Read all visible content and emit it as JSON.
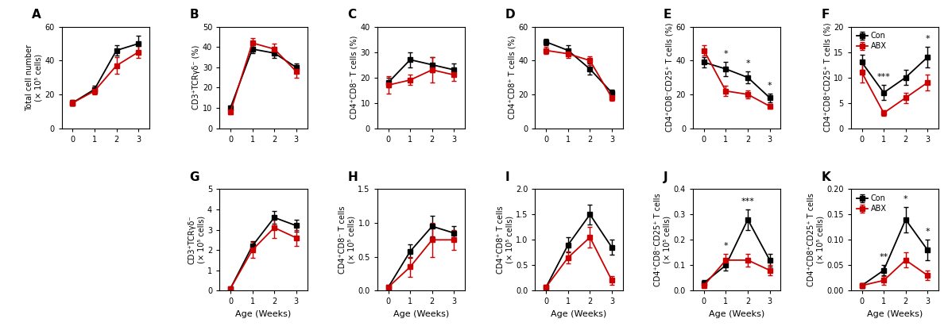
{
  "chart_data": [
    {
      "type": "line",
      "title": "A",
      "ylabel": "Total cell number\n(× 10⁵ cells)",
      "x": [
        0,
        1,
        2,
        3
      ],
      "xlim": [
        -0.5,
        3.5
      ],
      "xticks": [
        0,
        1,
        2,
        3
      ],
      "ylim": [
        0,
        60
      ],
      "yticks": [
        0,
        20,
        40,
        60
      ],
      "series": [
        {
          "name": "Con",
          "color": "#000000",
          "marker": "square",
          "values": [
            15,
            23,
            46,
            50
          ],
          "errors": [
            1.5,
            2.0,
            3.0,
            4.5
          ]
        },
        {
          "name": "ABX",
          "color": "#cc0000",
          "marker": "square",
          "values": [
            15,
            22,
            37,
            45
          ],
          "errors": [
            1.5,
            2.0,
            5.0,
            3.5
          ]
        }
      ]
    },
    {
      "type": "line",
      "title": "B",
      "ylabel": "CD3⁺TCRγδ⁻ (%)",
      "x": [
        0,
        1,
        2,
        3
      ],
      "xlim": [
        -0.5,
        3.5
      ],
      "xticks": [
        0,
        1,
        2,
        3
      ],
      "ylim": [
        0,
        50
      ],
      "yticks": [
        0,
        10,
        20,
        30,
        40,
        50
      ],
      "series": [
        {
          "name": "Con",
          "color": "#000000",
          "marker": "square",
          "values": [
            10,
            39,
            37,
            30
          ],
          "errors": [
            1.0,
            2.0,
            2.5,
            2.0
          ]
        },
        {
          "name": "ABX",
          "color": "#cc0000",
          "marker": "square",
          "values": [
            8,
            42,
            39,
            28
          ],
          "errors": [
            1.0,
            2.5,
            2.5,
            3.0
          ]
        }
      ]
    },
    {
      "type": "line",
      "title": "C",
      "ylabel": "CD4⁺CD8⁻ T cells (%)",
      "x": [
        0,
        1,
        2,
        3
      ],
      "xlim": [
        -0.5,
        3.5
      ],
      "xticks": [
        0,
        1,
        2,
        3
      ],
      "ylim": [
        0,
        40
      ],
      "yticks": [
        0,
        10,
        20,
        30,
        40
      ],
      "series": [
        {
          "name": "Con",
          "color": "#000000",
          "marker": "square",
          "values": [
            18,
            27,
            25,
            23
          ],
          "errors": [
            2.0,
            3.0,
            3.0,
            2.5
          ]
        },
        {
          "name": "ABX",
          "color": "#cc0000",
          "marker": "square",
          "values": [
            17,
            19,
            23,
            21
          ],
          "errors": [
            3.5,
            2.0,
            5.0,
            2.5
          ]
        }
      ]
    },
    {
      "type": "line",
      "title": "D",
      "ylabel": "CD4⁺CD8⁺ T cells (%)",
      "x": [
        0,
        1,
        2,
        3
      ],
      "xlim": [
        -0.5,
        3.5
      ],
      "xticks": [
        0,
        1,
        2,
        3
      ],
      "ylim": [
        0,
        60
      ],
      "yticks": [
        0,
        20,
        40,
        60
      ],
      "series": [
        {
          "name": "Con",
          "color": "#000000",
          "marker": "square",
          "values": [
            51,
            46,
            35,
            21
          ],
          "errors": [
            2.0,
            3.0,
            3.5,
            2.0
          ]
        },
        {
          "name": "ABX",
          "color": "#cc0000",
          "marker": "square",
          "values": [
            46,
            44,
            40,
            18
          ],
          "errors": [
            2.0,
            2.5,
            2.5,
            2.0
          ]
        }
      ]
    },
    {
      "type": "line",
      "title": "E",
      "ylabel": "CD4⁺CD8⁻CD25⁺ T cells (%)",
      "x": [
        0,
        1,
        2,
        3
      ],
      "xlim": [
        -0.5,
        3.5
      ],
      "xticks": [
        0,
        1,
        2,
        3
      ],
      "ylim": [
        0,
        60
      ],
      "yticks": [
        0,
        20,
        40,
        60
      ],
      "series": [
        {
          "name": "Con",
          "color": "#000000",
          "marker": "square",
          "values": [
            39,
            35,
            30,
            18
          ],
          "errors": [
            3.0,
            4.0,
            3.5,
            2.5
          ]
        },
        {
          "name": "ABX",
          "color": "#cc0000",
          "marker": "square",
          "values": [
            46,
            22,
            20,
            13
          ],
          "errors": [
            3.0,
            3.0,
            2.5,
            1.5
          ]
        }
      ],
      "annotations": [
        {
          "x": 1,
          "text": "*"
        },
        {
          "x": 2,
          "text": "*"
        },
        {
          "x": 3,
          "text": "*"
        }
      ]
    },
    {
      "type": "line",
      "title": "F",
      "ylabel": "CD4⁺CD8⁺CD25⁺ T cells (%)",
      "x": [
        0,
        1,
        2,
        3
      ],
      "xlim": [
        -0.5,
        3.5
      ],
      "xticks": [
        0,
        1,
        2,
        3
      ],
      "ylim": [
        0,
        20
      ],
      "yticks": [
        0,
        5,
        10,
        15,
        20
      ],
      "series": [
        {
          "name": "Con",
          "color": "#000000",
          "marker": "square",
          "values": [
            13,
            7,
            10,
            14
          ],
          "errors": [
            1.5,
            1.5,
            1.5,
            2.0
          ]
        },
        {
          "name": "ABX",
          "color": "#cc0000",
          "marker": "square",
          "values": [
            11,
            3,
            6,
            9
          ],
          "errors": [
            2.0,
            0.5,
            1.0,
            1.5
          ]
        }
      ],
      "annotations": [
        {
          "x": 1,
          "text": "***"
        },
        {
          "x": 3,
          "text": "*"
        }
      ],
      "legend": "upper left"
    },
    {
      "type": "line",
      "title": "G",
      "ylabel": "CD3⁺TCRγδ⁻\n(× 10⁵ cells)",
      "xlabel": "Age (Weeks)",
      "x": [
        0,
        1,
        2,
        3
      ],
      "xlim": [
        -0.5,
        3.5
      ],
      "xticks": [
        0,
        1,
        2,
        3
      ],
      "ylim": [
        0,
        5
      ],
      "yticks": [
        0,
        1,
        2,
        3,
        4,
        5
      ],
      "series": [
        {
          "name": "Con",
          "color": "#000000",
          "marker": "square",
          "values": [
            0.1,
            2.2,
            3.6,
            3.2
          ],
          "errors": [
            0.05,
            0.25,
            0.3,
            0.3
          ]
        },
        {
          "name": "ABX",
          "color": "#cc0000",
          "marker": "square",
          "values": [
            0.1,
            2.0,
            3.1,
            2.6
          ],
          "errors": [
            0.05,
            0.4,
            0.5,
            0.4
          ]
        }
      ]
    },
    {
      "type": "line",
      "title": "H",
      "ylabel": "CD4⁺CD8⁻ T cells\n(× 10⁵ cells)",
      "xlabel": "Age (Weeks)",
      "x": [
        0,
        1,
        2,
        3
      ],
      "xlim": [
        -0.5,
        3.5
      ],
      "xticks": [
        0,
        1,
        2,
        3
      ],
      "ylim": [
        0.0,
        1.5
      ],
      "yticks": [
        {
          "value": 0.0,
          "label": "0.0"
        },
        {
          "value": 0.5,
          "label": "0.5"
        },
        {
          "value": 1.0,
          "label": "1.0"
        },
        {
          "value": 1.5,
          "label": "1.5"
        }
      ],
      "series": [
        {
          "name": "Con",
          "color": "#000000",
          "marker": "square",
          "values": [
            0.05,
            0.58,
            0.95,
            0.85
          ],
          "errors": [
            0.02,
            0.1,
            0.15,
            0.1
          ]
        },
        {
          "name": "ABX",
          "color": "#cc0000",
          "marker": "square",
          "values": [
            0.05,
            0.35,
            0.75,
            0.75
          ],
          "errors": [
            0.02,
            0.15,
            0.25,
            0.15
          ]
        }
      ]
    },
    {
      "type": "line",
      "title": "I",
      "ylabel": "CD4⁺CD8⁺ T cells\n(× 10⁵ cells)",
      "xlabel": "Age (Weeks)",
      "x": [
        0,
        1,
        2,
        3
      ],
      "xlim": [
        -0.5,
        3.5
      ],
      "xticks": [
        0,
        1,
        2,
        3
      ],
      "ylim": [
        0,
        2.0
      ],
      "yticks": [
        {
          "value": 0,
          "label": "0.0"
        },
        {
          "value": 0.5,
          "label": "0.5"
        },
        {
          "value": 1.0,
          "label": "1.0"
        },
        {
          "value": 1.5,
          "label": "1.5"
        },
        {
          "value": 2.0,
          "label": "2.0"
        }
      ],
      "series": [
        {
          "name": "Con",
          "color": "#000000",
          "marker": "square",
          "values": [
            0.07,
            0.9,
            1.5,
            0.85
          ],
          "errors": [
            0.03,
            0.15,
            0.2,
            0.15
          ]
        },
        {
          "name": "ABX",
          "color": "#cc0000",
          "marker": "square",
          "values": [
            0.07,
            0.65,
            1.05,
            0.2
          ],
          "errors": [
            0.03,
            0.12,
            0.2,
            0.08
          ]
        }
      ]
    },
    {
      "type": "line",
      "title": "J",
      "ylabel": "CD4⁺CD8⁻CD25⁺ T cells\n(× 10⁵ cells)",
      "xlabel": "Age (Weeks)",
      "x": [
        0,
        1,
        2,
        3
      ],
      "xlim": [
        -0.5,
        3.5
      ],
      "xticks": [
        0,
        1,
        2,
        3
      ],
      "ylim": [
        0,
        0.4
      ],
      "yticks": [
        {
          "value": 0,
          "label": "0.0"
        },
        {
          "value": 0.1,
          "label": "0.1"
        },
        {
          "value": 0.2,
          "label": "0.2"
        },
        {
          "value": 0.3,
          "label": "0.3"
        },
        {
          "value": 0.4,
          "label": "0.4"
        }
      ],
      "series": [
        {
          "name": "Con",
          "color": "#000000",
          "marker": "square",
          "values": [
            0.03,
            0.1,
            0.28,
            0.12
          ],
          "errors": [
            0.01,
            0.02,
            0.04,
            0.025
          ]
        },
        {
          "name": "ABX",
          "color": "#cc0000",
          "marker": "square",
          "values": [
            0.02,
            0.12,
            0.12,
            0.08
          ],
          "errors": [
            0.01,
            0.025,
            0.025,
            0.02
          ]
        }
      ],
      "annotations": [
        {
          "x": 1,
          "text": "*"
        },
        {
          "x": 2,
          "text": "***"
        }
      ]
    },
    {
      "type": "line",
      "title": "K",
      "ylabel": "CD4⁺CD8⁺CD25⁺ T cells\n(× 10⁵ cells)",
      "xlabel": "Age (Weeks)",
      "x": [
        0,
        1,
        2,
        3
      ],
      "xlim": [
        -0.5,
        3.5
      ],
      "xticks": [
        0,
        1,
        2,
        3
      ],
      "ylim": [
        0,
        0.2
      ],
      "yticks": [
        {
          "value": 0,
          "label": "0.00"
        },
        {
          "value": 0.05,
          "label": "0.05"
        },
        {
          "value": 0.1,
          "label": "0.10"
        },
        {
          "value": 0.15,
          "label": "0.15"
        },
        {
          "value": 0.2,
          "label": "0.20"
        }
      ],
      "series": [
        {
          "name": "Con",
          "color": "#000000",
          "marker": "square",
          "values": [
            0.01,
            0.04,
            0.14,
            0.08
          ],
          "errors": [
            0.005,
            0.01,
            0.025,
            0.02
          ]
        },
        {
          "name": "ABX",
          "color": "#cc0000",
          "marker": "square",
          "values": [
            0.01,
            0.02,
            0.06,
            0.03
          ],
          "errors": [
            0.005,
            0.008,
            0.015,
            0.01
          ]
        }
      ],
      "annotations": [
        {
          "x": 1,
          "text": "**"
        },
        {
          "x": 2,
          "text": "*"
        },
        {
          "x": 3,
          "text": "*"
        }
      ],
      "legend": "upper left"
    }
  ]
}
